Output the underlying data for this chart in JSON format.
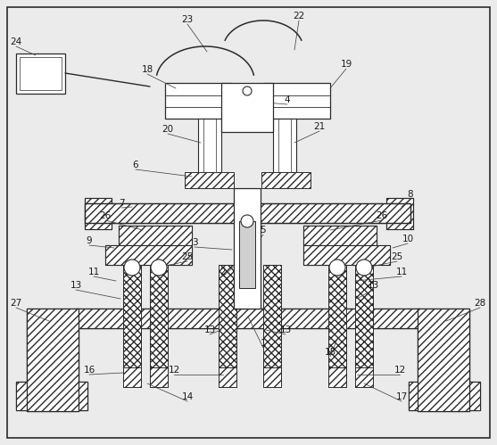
{
  "bg_color": "#ebebeb",
  "line_color": "#2a2a2a",
  "white": "#ffffff",
  "hatch_fwd": "////",
  "hatch_cross": "xxxx",
  "fig_w": 5.57,
  "fig_h": 4.99,
  "dpi": 100
}
